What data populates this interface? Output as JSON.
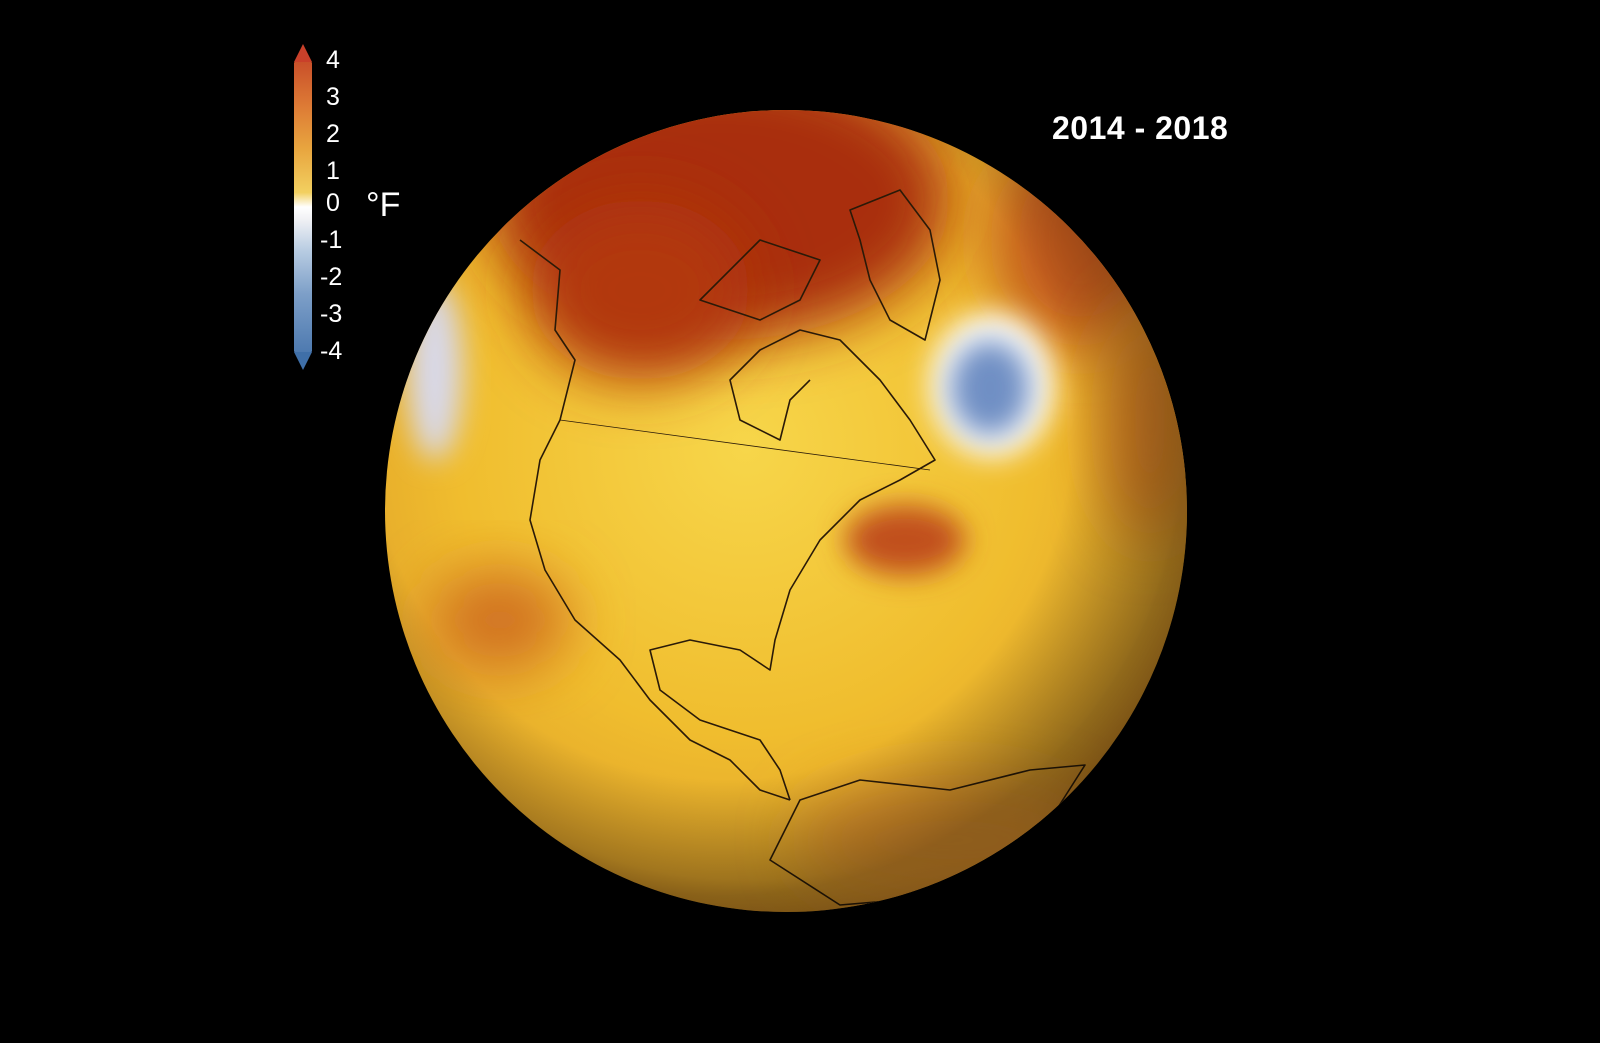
{
  "period_label": "2014 - 2018",
  "legend": {
    "unit": "°F",
    "ticks": [
      "4",
      "3",
      "2",
      "1",
      "0",
      "-1",
      "-2",
      "-3",
      "-4"
    ],
    "range": [
      -4,
      4
    ],
    "colors": {
      "max": "#c9402a",
      "warm": "#e8a53f",
      "zero": "#ffffff",
      "cool": "#7d9fc8",
      "min": "#3f6fa8"
    }
  },
  "map": {
    "projection": "orthographic globe",
    "centered_on": "North America",
    "highlights": [
      {
        "region": "Alaska / Northwest Canada",
        "anomaly": "warm",
        "level": 4
      },
      {
        "region": "North Atlantic south of Greenland",
        "anomaly": "cool",
        "level": -3
      },
      {
        "region": "Northwest Atlantic off US East Coast",
        "anomaly": "warm",
        "level": 3
      }
    ]
  }
}
